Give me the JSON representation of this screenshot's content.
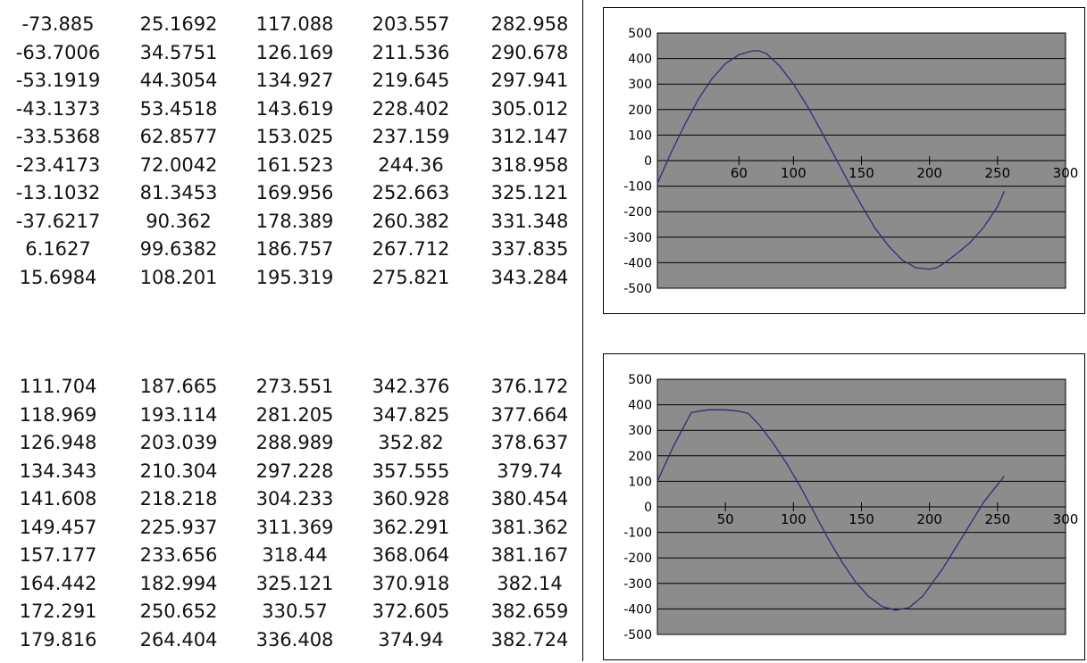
{
  "tables": [
    {
      "rows": [
        [
          "-73.885",
          "25.1692",
          "117.088",
          "203.557",
          "282.958"
        ],
        [
          "-63.7006",
          "34.5751",
          "126.169",
          "211.536",
          "290.678"
        ],
        [
          "-53.1919",
          "44.3054",
          "134.927",
          "219.645",
          "297.941"
        ],
        [
          "-43.1373",
          "53.4518",
          "143.619",
          "228.402",
          "305.012"
        ],
        [
          "-33.5368",
          "62.8577",
          "153.025",
          "237.159",
          "312.147"
        ],
        [
          "-23.4173",
          "72.0042",
          "161.523",
          "244.36",
          "318.958"
        ],
        [
          "-13.1032",
          "81.3453",
          "169.956",
          "252.663",
          "325.121"
        ],
        [
          "-37.6217",
          "90.362",
          "178.389",
          "260.382",
          "331.348"
        ],
        [
          "6.1627",
          "99.6382",
          "186.757",
          "267.712",
          "337.835"
        ],
        [
          "15.6984",
          "108.201",
          "195.319",
          "275.821",
          "343.284"
        ]
      ]
    },
    {
      "rows": [
        [
          "111.704",
          "187.665",
          "273.551",
          "342.376",
          "376.172"
        ],
        [
          "118.969",
          "193.114",
          "281.205",
          "347.825",
          "377.664"
        ],
        [
          "126.948",
          "203.039",
          "288.989",
          "352.82",
          "378.637"
        ],
        [
          "134.343",
          "210.304",
          "297.228",
          "357.555",
          "379.74"
        ],
        [
          "141.608",
          "218.218",
          "304.233",
          "360.928",
          "380.454"
        ],
        [
          "149.457",
          "225.937",
          "311.369",
          "362.291",
          "381.362"
        ],
        [
          "157.177",
          "233.656",
          "318.44",
          "368.064",
          "381.167"
        ],
        [
          "164.442",
          "182.994",
          "325.121",
          "370.918",
          "382.14"
        ],
        [
          "172.291",
          "250.652",
          "330.57",
          "372.605",
          "382.659"
        ],
        [
          "179.816",
          "264.404",
          "336.408",
          "374.94",
          "382.724"
        ]
      ]
    }
  ],
  "chart_data": [
    {
      "type": "line",
      "title": "",
      "xlabel": "",
      "ylabel": "",
      "xlim": [
        0,
        300
      ],
      "ylim": [
        -500,
        500
      ],
      "yticks": [
        "500",
        "400",
        "300",
        "200",
        "100",
        "0",
        "-100",
        "-200",
        "-300",
        "-400",
        "-500"
      ],
      "xticks": [
        {
          "value": 60,
          "label": "60"
        },
        {
          "value": 100,
          "label": "100"
        },
        {
          "value": 150,
          "label": "150"
        },
        {
          "value": 200,
          "label": "200"
        },
        {
          "value": 250,
          "label": "250"
        },
        {
          "value": 300,
          "label": "300"
        }
      ],
      "grid": true,
      "plot_background": "#8c8c8c",
      "line_color": "#2e2e78",
      "series": [
        {
          "x": [
            0,
            10,
            20,
            30,
            40,
            50,
            60,
            70,
            75,
            80,
            90,
            100,
            110,
            120,
            130,
            140,
            150,
            160,
            170,
            180,
            190,
            200,
            205,
            210,
            220,
            230,
            240,
            250,
            255
          ],
          "y": [
            -90,
            30,
            140,
            240,
            320,
            380,
            415,
            430,
            430,
            420,
            370,
            300,
            215,
            120,
            20,
            -80,
            -175,
            -265,
            -335,
            -390,
            -420,
            -425,
            -420,
            -405,
            -365,
            -320,
            -260,
            -180,
            -120
          ]
        }
      ]
    },
    {
      "type": "line",
      "title": "",
      "xlabel": "",
      "ylabel": "",
      "xlim": [
        0,
        300
      ],
      "ylim": [
        -500,
        500
      ],
      "yticks": [
        "500",
        "400",
        "300",
        "200",
        "100",
        "0",
        "-100",
        "-200",
        "-300",
        "-400",
        "-500"
      ],
      "xticks": [
        {
          "value": 50,
          "label": "50"
        },
        {
          "value": 100,
          "label": "100"
        },
        {
          "value": 150,
          "label": "150"
        },
        {
          "value": 200,
          "label": "200"
        },
        {
          "value": 250,
          "label": "250"
        },
        {
          "value": 300,
          "label": "300"
        }
      ],
      "grid": true,
      "plot_background": "#8c8c8c",
      "line_color": "#2e2e78",
      "series": [
        {
          "x": [
            0,
            12,
            25,
            37,
            50,
            60,
            67,
            75,
            85,
            95,
            105,
            115,
            125,
            135,
            145,
            155,
            165,
            175,
            185,
            195,
            210,
            225,
            240,
            255
          ],
          "y": [
            100,
            240,
            370,
            380,
            380,
            375,
            365,
            320,
            250,
            170,
            80,
            -20,
            -120,
            -210,
            -290,
            -350,
            -390,
            -405,
            -395,
            -350,
            -240,
            -110,
            20,
            120
          ]
        }
      ]
    }
  ]
}
